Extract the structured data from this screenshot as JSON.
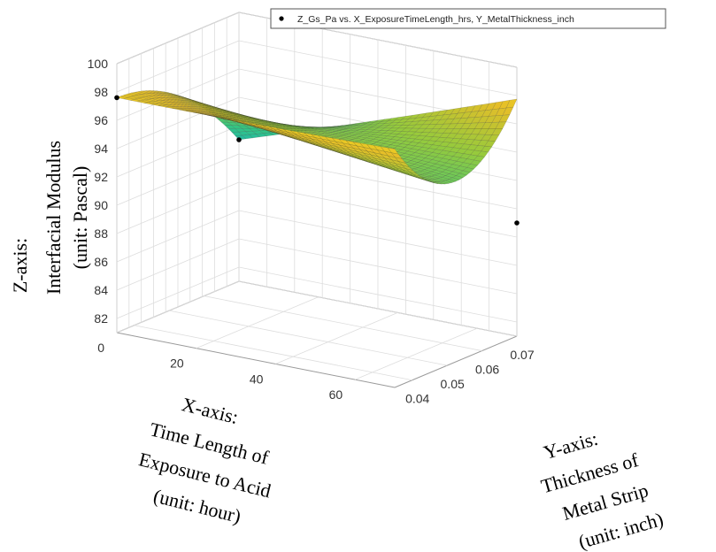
{
  "chart_data": {
    "type": "surface3d",
    "x_axis": {
      "title_lines": [
        "X-axis:",
        "Time Length of",
        "Exposure to Acid",
        "(unit: hour)"
      ],
      "ticks": [
        0,
        20,
        40,
        60
      ],
      "range": [
        0,
        70
      ]
    },
    "y_axis": {
      "title_lines": [
        "Y-axis:",
        "Thickness of",
        "Metal Strip",
        "(unit: inch)"
      ],
      "ticks": [
        0.04,
        0.05,
        0.06,
        0.07
      ],
      "range": [
        0.035,
        0.07
      ]
    },
    "z_axis": {
      "title_lines": [
        "Z-axis:",
        "Interfacial Modulus",
        "(unit: Pascal)"
      ],
      "ticks": [
        82,
        84,
        86,
        88,
        90,
        92,
        94,
        96,
        98,
        100
      ],
      "range": [
        81,
        100
      ]
    },
    "legend": {
      "label": "Z_Gs_Pa vs. X_ExposureTimeLength_hrs, Y_MetalThickness_inch",
      "position": "top"
    },
    "points": [
      {
        "x": 0,
        "y": 0.035,
        "z": 97.6
      },
      {
        "x": 0,
        "y": 0.07,
        "z": 91
      },
      {
        "x": 70,
        "y": 0.07,
        "z": 89
      }
    ],
    "grid": true,
    "colormap": "parula"
  }
}
